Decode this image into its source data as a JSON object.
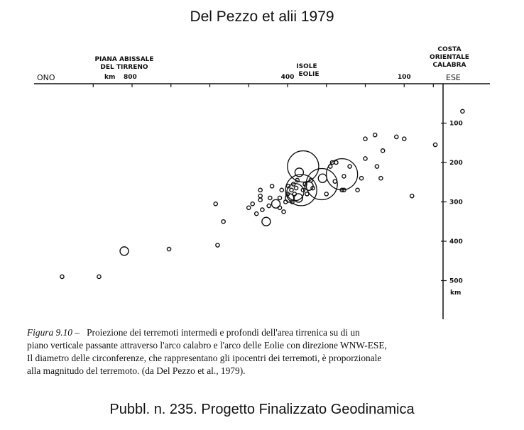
{
  "header": {
    "title": "Del Pezzo et alii 1979"
  },
  "footer": {
    "text": "Pubbl. n. 235. Progetto Finalizzato Geodinamica"
  },
  "caption": {
    "figure_label": "Figura 9.10 –",
    "lines": [
      "Proiezione dei terremoti intermedi e profondi dell'area tirrenica su di un",
      "piano verticale passante attraverso l'arco calabro e l'arco delle Eolie con direzione WNW-ESE,",
      "Il diametro delle circonferenze, che rappresentano gli ipocentri dei terremoti, è proporzionale",
      "alla magnitudo del terremoto. (da Del Pezzo et al., 1979)."
    ]
  },
  "chart_data": {
    "type": "scatter",
    "title": "",
    "direction_labels": {
      "left": "ONO",
      "right": "ESE"
    },
    "region_labels": [
      {
        "lines": [
          "PIANA ABISSALE",
          "DEL TIRRENO"
        ]
      },
      {
        "lines": [
          "ISOLE",
          "EOLIE"
        ]
      },
      {
        "lines": [
          "COSTA",
          "ORIENTALE",
          "CALABRA"
        ]
      }
    ],
    "x_axis": {
      "unit_label": "km",
      "ticks": [
        800,
        400,
        100
      ],
      "direction": "decreasing-to-right",
      "xlim": [
        1000,
        0
      ]
    },
    "y_axis": {
      "unit_label": "km",
      "ticks": [
        100,
        200,
        300,
        400,
        500
      ],
      "ylim": [
        0,
        550
      ]
    },
    "points": [
      {
        "x": 980,
        "y": 490,
        "m": 1
      },
      {
        "x": 885,
        "y": 490,
        "m": 1
      },
      {
        "x": 820,
        "y": 425,
        "m": 2
      },
      {
        "x": 705,
        "y": 420,
        "m": 1
      },
      {
        "x": 585,
        "y": 305,
        "m": 1
      },
      {
        "x": 580,
        "y": 410,
        "m": 1
      },
      {
        "x": 565,
        "y": 350,
        "m": 1
      },
      {
        "x": 500,
        "y": 315,
        "m": 1
      },
      {
        "x": 490,
        "y": 305,
        "m": 1
      },
      {
        "x": 480,
        "y": 330,
        "m": 1
      },
      {
        "x": 470,
        "y": 270,
        "m": 1
      },
      {
        "x": 470,
        "y": 285,
        "m": 1
      },
      {
        "x": 470,
        "y": 295,
        "m": 1
      },
      {
        "x": 465,
        "y": 320,
        "m": 1
      },
      {
        "x": 455,
        "y": 350,
        "m": 2
      },
      {
        "x": 448,
        "y": 310,
        "m": 1
      },
      {
        "x": 445,
        "y": 290,
        "m": 1
      },
      {
        "x": 440,
        "y": 260,
        "m": 1
      },
      {
        "x": 430,
        "y": 305,
        "m": 2
      },
      {
        "x": 420,
        "y": 315,
        "m": 1
      },
      {
        "x": 420,
        "y": 290,
        "m": 1
      },
      {
        "x": 415,
        "y": 270,
        "m": 1
      },
      {
        "x": 410,
        "y": 325,
        "m": 1
      },
      {
        "x": 405,
        "y": 300,
        "m": 1
      },
      {
        "x": 400,
        "y": 280,
        "m": 1
      },
      {
        "x": 398,
        "y": 260,
        "m": 1
      },
      {
        "x": 395,
        "y": 290,
        "m": 2
      },
      {
        "x": 390,
        "y": 270,
        "m": 1
      },
      {
        "x": 388,
        "y": 300,
        "m": 1
      },
      {
        "x": 385,
        "y": 255,
        "m": 1
      },
      {
        "x": 382,
        "y": 280,
        "m": 1
      },
      {
        "x": 380,
        "y": 275,
        "m": 3
      },
      {
        "x": 378,
        "y": 265,
        "m": 1
      },
      {
        "x": 375,
        "y": 245,
        "m": 1
      },
      {
        "x": 372,
        "y": 290,
        "m": 2
      },
      {
        "x": 370,
        "y": 225,
        "m": 2
      },
      {
        "x": 365,
        "y": 270,
        "m": 4
      },
      {
        "x": 360,
        "y": 270,
        "m": 1
      },
      {
        "x": 355,
        "y": 255,
        "m": 1
      },
      {
        "x": 350,
        "y": 280,
        "m": 1
      },
      {
        "x": 345,
        "y": 260,
        "m": 2
      },
      {
        "x": 340,
        "y": 245,
        "m": 1
      },
      {
        "x": 335,
        "y": 265,
        "m": 1
      },
      {
        "x": 360,
        "y": 210,
        "m": 4
      },
      {
        "x": 312,
        "y": 255,
        "m": 4
      },
      {
        "x": 300,
        "y": 280,
        "m": 1
      },
      {
        "x": 310,
        "y": 240,
        "m": 2
      },
      {
        "x": 290,
        "y": 210,
        "m": 1
      },
      {
        "x": 285,
        "y": 200,
        "m": 1
      },
      {
        "x": 278,
        "y": 248,
        "m": 1
      },
      {
        "x": 275,
        "y": 200,
        "m": 1
      },
      {
        "x": 260,
        "y": 230,
        "m": 4
      },
      {
        "x": 260,
        "y": 270,
        "m": 1
      },
      {
        "x": 255,
        "y": 270,
        "m": 1
      },
      {
        "x": 255,
        "y": 235,
        "m": 1
      },
      {
        "x": 240,
        "y": 210,
        "m": 1
      },
      {
        "x": 220,
        "y": 270,
        "m": 1
      },
      {
        "x": 210,
        "y": 240,
        "m": 1
      },
      {
        "x": 200,
        "y": 190,
        "m": 1
      },
      {
        "x": 200,
        "y": 140,
        "m": 1
      },
      {
        "x": 175,
        "y": 130,
        "m": 1
      },
      {
        "x": 170,
        "y": 210,
        "m": 1
      },
      {
        "x": 160,
        "y": 240,
        "m": 1
      },
      {
        "x": 155,
        "y": 170,
        "m": 1
      },
      {
        "x": 120,
        "y": 135,
        "m": 1
      },
      {
        "x": 100,
        "y": 140,
        "m": 1
      },
      {
        "x": 80,
        "y": 285,
        "m": 1
      },
      {
        "x": 20,
        "y": 155,
        "m": 1
      },
      {
        "x": -50,
        "y": 70,
        "m": 1
      }
    ]
  }
}
